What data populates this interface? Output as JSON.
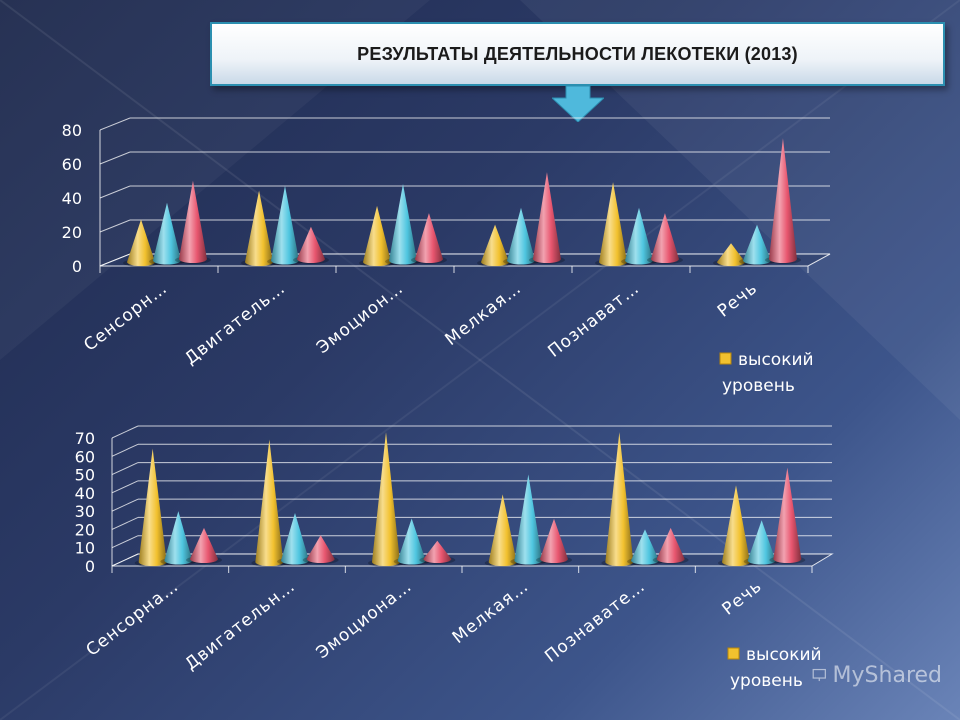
{
  "title": "РЕЗУЛЬТАТЫ ДЕЯТЕЛЬНОСТИ ЛЕКОТЕКИ (2013)",
  "watermark": "MyShared",
  "colors": {
    "series1": "#f2c12e",
    "series2": "#4fc6e0",
    "series3": "#e8566f",
    "arrow": "#4fb9dc",
    "title_border": "#2b8fb0"
  },
  "chart_data": [
    {
      "type": "bar",
      "style": "3d-cone",
      "categories": [
        "Сенсорн…",
        "Двигатель…",
        "Эмоцион…",
        "Мелкая…",
        "Познават…",
        "Речь"
      ],
      "yticks": [
        "0",
        "20",
        "40",
        "60",
        "80"
      ],
      "ylim": [
        0,
        80
      ],
      "grid": true,
      "legend": {
        "position": "right",
        "label": "высокий уровень",
        "line1": "высокий",
        "line2": "уровень"
      },
      "series": [
        {
          "name": "высокий уровень",
          "color": "#f2c12e",
          "values": [
            25,
            42,
            33,
            22,
            47,
            11
          ]
        },
        {
          "color": "#4fc6e0",
          "values": [
            34,
            44,
            45,
            31,
            31,
            21
          ]
        },
        {
          "color": "#e8566f",
          "values": [
            46,
            19,
            27,
            51,
            27,
            71
          ]
        }
      ]
    },
    {
      "type": "bar",
      "style": "3d-cone",
      "categories": [
        "Сенсорна…",
        "Двигательн…",
        "Эмоциона…",
        "Мелкая…",
        "Познавате…",
        "Речь"
      ],
      "yticks": [
        "0",
        "10",
        "20",
        "30",
        "40",
        "50",
        "60",
        "70"
      ],
      "ylim": [
        0,
        70
      ],
      "grid": true,
      "legend": {
        "position": "right",
        "label": "высокий уровень",
        "line1": "высокий",
        "line2": "уровень"
      },
      "series": [
        {
          "name": "высокий уровень",
          "color": "#f2c12e",
          "values": [
            62,
            67,
            71,
            37,
            71,
            42
          ]
        },
        {
          "color": "#4fc6e0",
          "values": [
            27,
            26,
            23,
            47,
            17,
            22
          ]
        },
        {
          "color": "#e8566f",
          "values": [
            17,
            13,
            10,
            22,
            17,
            50
          ]
        }
      ]
    }
  ]
}
